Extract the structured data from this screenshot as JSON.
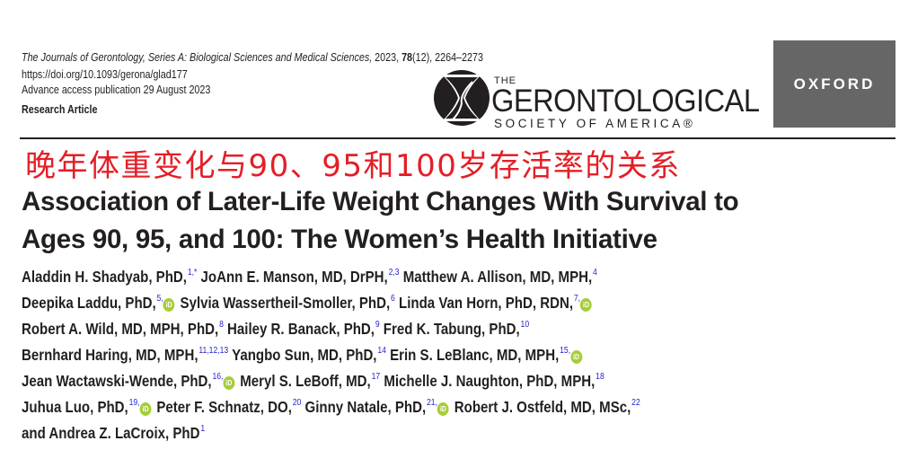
{
  "header": {
    "journal": "The Journals of Gerontology, Series A: Biological Sciences and Medical Sciences,",
    "citation_rest": " 2023, ",
    "volume": "78",
    "issue_pages": "(12), 2264–2273",
    "doi": "https://doi.org/10.1093/gerona/glad177",
    "advance_access": "Advance access publication 29 August 2023",
    "article_type": "Research Article"
  },
  "logos": {
    "society_the": "THE",
    "society_name": "GERONTOLOGICAL",
    "society_sub": "SOCIETY OF AMERICA®",
    "publisher": "OXFORD",
    "publisher_bg": "#666666"
  },
  "title": {
    "chinese": "晚年体重变化与90、95和100岁存活率的关系",
    "chinese_color": "#e41e26",
    "english_line1": "Association of Later-Life Weight Changes With Survival to",
    "english_line2": "Ages 90, 95, and 100: The Women’s Health Initiative"
  },
  "authors": [
    [
      {
        "name": "Aladdin H. Shadyab, PhD,",
        "sup": "1,*"
      },
      {
        "name": " JoAnn E. Manson, MD, DrPH,",
        "sup": "2,3"
      },
      {
        "name": " Matthew A. Allison, MD, MPH,",
        "sup": "4"
      }
    ],
    [
      {
        "name": "Deepika Laddu, PhD,",
        "sup": "5,",
        "orcid": true
      },
      {
        "name": " Sylvia Wassertheil-Smoller, PhD,",
        "sup": "6"
      },
      {
        "name": " Linda Van Horn, PhD, RDN,",
        "sup": "7,",
        "orcid": true
      }
    ],
    [
      {
        "name": "Robert A. Wild, MD, MPH, PhD,",
        "sup": "8"
      },
      {
        "name": " Hailey R. Banack, PhD,",
        "sup": "9"
      },
      {
        "name": " Fred K. Tabung, PhD,",
        "sup": "10"
      }
    ],
    [
      {
        "name": "Bernhard Haring, MD, MPH,",
        "sup": "11,12,13"
      },
      {
        "name": " Yangbo Sun, MD, PhD,",
        "sup": "14"
      },
      {
        "name": " Erin S. LeBlanc, MD, MPH,",
        "sup": "15,",
        "orcid": true
      }
    ],
    [
      {
        "name": "Jean Wactawski-Wende, PhD,",
        "sup": "16,",
        "orcid": true
      },
      {
        "name": " Meryl S. LeBoff, MD,",
        "sup": "17"
      },
      {
        "name": " Michelle J. Naughton, PhD, MPH,",
        "sup": "18"
      }
    ],
    [
      {
        "name": "Juhua Luo, PhD,",
        "sup": "19,",
        "orcid": true
      },
      {
        "name": " Peter F. Schnatz, DO,",
        "sup": "20"
      },
      {
        "name": " Ginny Natale, PhD,",
        "sup": "21,",
        "orcid": true
      },
      {
        "name": " Robert J. Ostfeld, MD, MSc,",
        "sup": "22"
      }
    ],
    [
      {
        "name": "and Andrea Z. LaCroix, PhD",
        "sup": "1"
      }
    ]
  ],
  "orcid_label": "iD"
}
